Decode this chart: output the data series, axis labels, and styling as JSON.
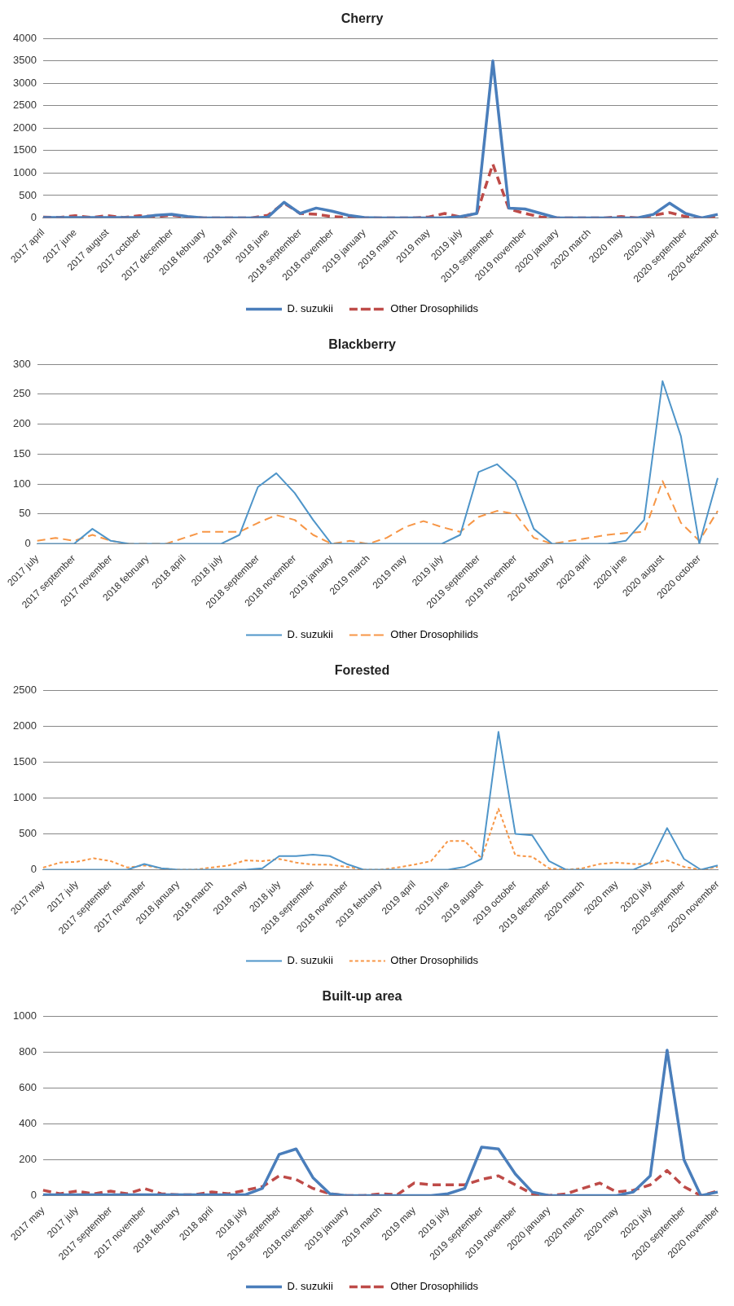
{
  "chart_data": [
    {
      "type": "line",
      "title": "Cherry",
      "categories": [
        "2017 april",
        null,
        "2017 june",
        null,
        "2017 august",
        null,
        "2017 october",
        null,
        "2017 december",
        null,
        "2018 february",
        null,
        "2018 april",
        null,
        "2018 june",
        null,
        "2018 september",
        null,
        "2018 november",
        null,
        "2019 january",
        null,
        "2019 march",
        null,
        "2019 may",
        null,
        "2019 july",
        null,
        "2019 september",
        null,
        "2019 november",
        null,
        "2020 january",
        null,
        "2020 march",
        null,
        "2020 may",
        null,
        "2020 july",
        null,
        "2020 september",
        null,
        "2020 december"
      ],
      "series": [
        {
          "name": "D. suzukii",
          "color": "#4a7ebb",
          "line_style": "solid",
          "values": [
            10,
            10,
            10,
            10,
            10,
            10,
            10,
            60,
            80,
            30,
            0,
            0,
            0,
            0,
            20,
            350,
            100,
            220,
            150,
            60,
            10,
            0,
            0,
            0,
            0,
            0,
            30,
            100,
            3500,
            220,
            200,
            100,
            0,
            0,
            0,
            0,
            0,
            0,
            80,
            330,
            100,
            0,
            80
          ]
        },
        {
          "name": "Other Drosophilids",
          "color": "#be4b48",
          "line_style": "dashed",
          "values": [
            20,
            10,
            50,
            10,
            50,
            10,
            50,
            30,
            60,
            20,
            0,
            0,
            0,
            0,
            60,
            330,
            100,
            80,
            30,
            10,
            0,
            0,
            0,
            0,
            20,
            100,
            20,
            100,
            1200,
            200,
            100,
            20,
            0,
            0,
            0,
            0,
            30,
            0,
            60,
            120,
            30,
            0,
            40
          ]
        }
      ],
      "ylim": [
        0,
        4000
      ],
      "yticks": [
        0,
        500,
        1000,
        1500,
        2000,
        2500,
        3000,
        3500,
        4000
      ],
      "grid": "y",
      "legend": "bottom",
      "marker": "none"
    },
    {
      "type": "line",
      "title": "Blackberry",
      "categories": [
        "2017 july",
        null,
        "2017 september",
        null,
        "2017 november",
        null,
        "2018 february",
        null,
        "2018 april",
        null,
        "2018 july",
        null,
        "2018 september",
        null,
        "2018 november",
        null,
        "2019 january",
        null,
        "2019 march",
        null,
        "2019 may",
        null,
        "2019 july",
        null,
        "2019 september",
        null,
        "2019 november",
        null,
        "2020 february",
        null,
        "2020 april",
        null,
        "2020 june",
        null,
        "2020 august",
        null,
        "2020 october",
        null
      ],
      "series": [
        {
          "name": "D. suzukii",
          "color": "#4f95c9",
          "line_style": "solid",
          "values": [
            0,
            0,
            0,
            25,
            5,
            0,
            0,
            0,
            0,
            0,
            0,
            15,
            95,
            118,
            85,
            40,
            0,
            0,
            0,
            0,
            0,
            0,
            0,
            15,
            120,
            133,
            105,
            25,
            0,
            0,
            0,
            0,
            5,
            40,
            272,
            180,
            0,
            110
          ]
        },
        {
          "name": "Other Drosophilids",
          "color": "#f79646",
          "line_style": "dashed",
          "values": [
            5,
            10,
            5,
            15,
            5,
            0,
            0,
            0,
            10,
            20,
            20,
            20,
            35,
            48,
            40,
            15,
            0,
            5,
            0,
            10,
            28,
            38,
            28,
            20,
            45,
            55,
            50,
            10,
            0,
            5,
            10,
            15,
            18,
            20,
            105,
            35,
            5,
            55
          ]
        }
      ],
      "ylim": [
        0,
        300
      ],
      "yticks": [
        0,
        50,
        100,
        150,
        200,
        250,
        300
      ],
      "grid": "y",
      "legend": "bottom",
      "marker": "none"
    },
    {
      "type": "line",
      "title": "Forested",
      "categories": [
        "2017 may",
        null,
        "2017 july",
        null,
        "2017 september",
        null,
        "2017 november",
        null,
        "2018 january",
        null,
        "2018 march",
        null,
        "2018 may",
        null,
        "2018 july",
        null,
        "2018 september",
        null,
        "2018 november",
        null,
        "2019 february",
        null,
        "2019 april",
        null,
        "2019 june",
        null,
        "2019 august",
        null,
        "2019 october",
        null,
        "2019 december",
        null,
        "2020 march",
        null,
        "2020 may",
        null,
        "2020 july",
        null,
        "2020 september",
        null,
        "2020 november"
      ],
      "series": [
        {
          "name": "D. suzukii",
          "color": "#4f95c9",
          "line_style": "solid",
          "values": [
            0,
            0,
            0,
            0,
            0,
            0,
            80,
            20,
            0,
            0,
            0,
            0,
            0,
            20,
            190,
            190,
            210,
            190,
            80,
            0,
            0,
            0,
            0,
            0,
            0,
            40,
            150,
            1920,
            500,
            480,
            120,
            0,
            0,
            0,
            0,
            0,
            100,
            580,
            150,
            0,
            60
          ]
        },
        {
          "name": "Other Drosophilids",
          "color": "#f79646",
          "line_style": "dotted",
          "values": [
            30,
            100,
            110,
            160,
            120,
            30,
            60,
            20,
            0,
            0,
            30,
            60,
            130,
            120,
            150,
            100,
            70,
            70,
            40,
            0,
            0,
            30,
            70,
            120,
            400,
            400,
            160,
            850,
            200,
            180,
            20,
            0,
            20,
            80,
            100,
            80,
            80,
            130,
            40,
            0,
            40
          ]
        }
      ],
      "ylim": [
        0,
        2500
      ],
      "yticks": [
        0,
        500,
        1000,
        1500,
        2000,
        2500
      ],
      "grid": "y",
      "legend": "bottom",
      "marker": "none"
    },
    {
      "type": "line",
      "title": "Built-up area",
      "categories": [
        "2017 may",
        null,
        "2017 july",
        null,
        "2017 september",
        null,
        "2017 november",
        null,
        "2018 february",
        null,
        "2018 april",
        null,
        "2018 july",
        null,
        "2018 september",
        null,
        "2018 november",
        null,
        "2019 january",
        null,
        "2019 march",
        null,
        "2019 may",
        null,
        "2019 july",
        null,
        "2019 september",
        null,
        "2019 november",
        null,
        "2020 january",
        null,
        "2020 march",
        null,
        "2020 may",
        null,
        "2020 july",
        null,
        "2020 september",
        null,
        "2020 november"
      ],
      "series": [
        {
          "name": "D. suzukii",
          "color": "#4a7ebb",
          "line_style": "solid",
          "values": [
            5,
            5,
            5,
            5,
            5,
            5,
            5,
            5,
            5,
            5,
            5,
            5,
            5,
            40,
            230,
            260,
            100,
            10,
            0,
            0,
            0,
            0,
            0,
            0,
            10,
            40,
            270,
            260,
            120,
            20,
            0,
            0,
            0,
            0,
            0,
            20,
            110,
            810,
            200,
            0,
            20
          ]
        },
        {
          "name": "Other Drosophilids",
          "color": "#be4b48",
          "line_style": "dashed",
          "values": [
            30,
            10,
            25,
            10,
            25,
            10,
            40,
            10,
            5,
            5,
            20,
            10,
            30,
            50,
            110,
            90,
            40,
            10,
            0,
            0,
            10,
            5,
            70,
            60,
            60,
            60,
            90,
            110,
            60,
            10,
            0,
            10,
            40,
            70,
            20,
            30,
            60,
            140,
            50,
            0,
            25
          ]
        }
      ],
      "ylim": [
        0,
        1000
      ],
      "yticks": [
        0,
        200,
        400,
        600,
        800,
        1000
      ],
      "grid": "y",
      "legend": "bottom",
      "marker": "none"
    }
  ]
}
